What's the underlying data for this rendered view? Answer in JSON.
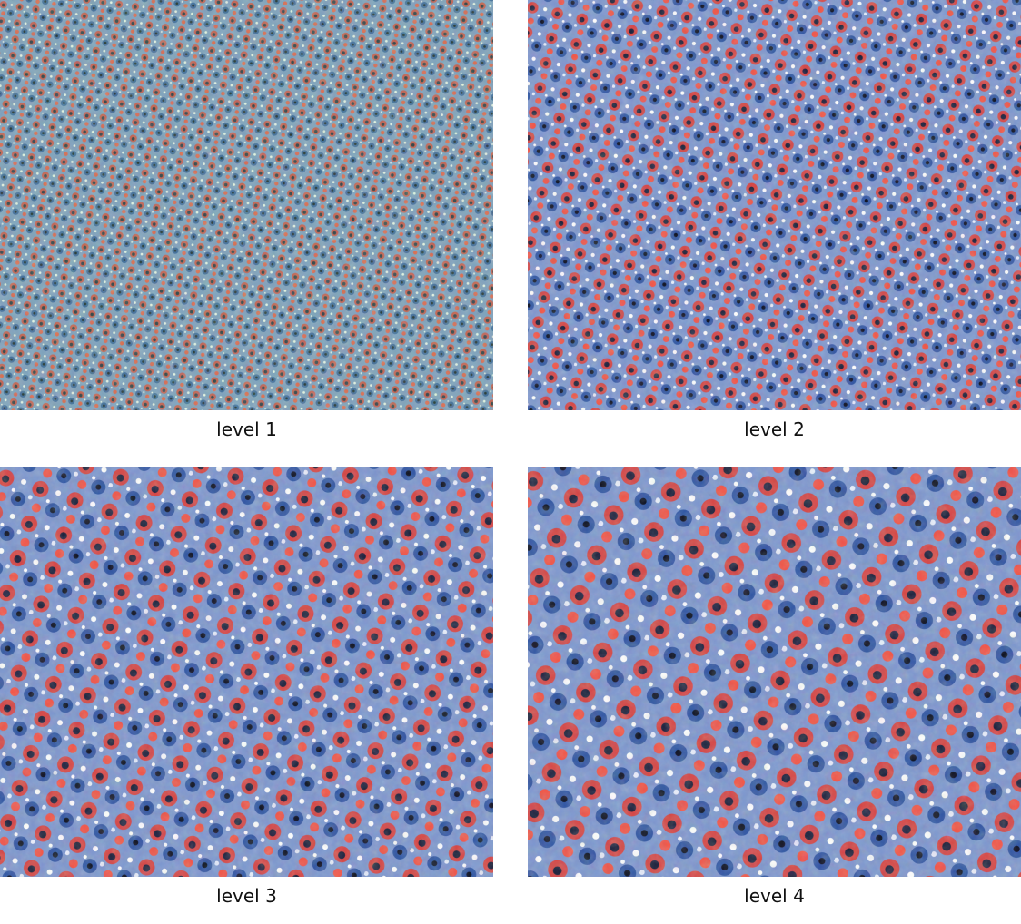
{
  "panels": [
    {
      "caption": "level 1"
    },
    {
      "caption": "level 2"
    },
    {
      "caption": "level 3"
    },
    {
      "caption": "level 4"
    }
  ]
}
